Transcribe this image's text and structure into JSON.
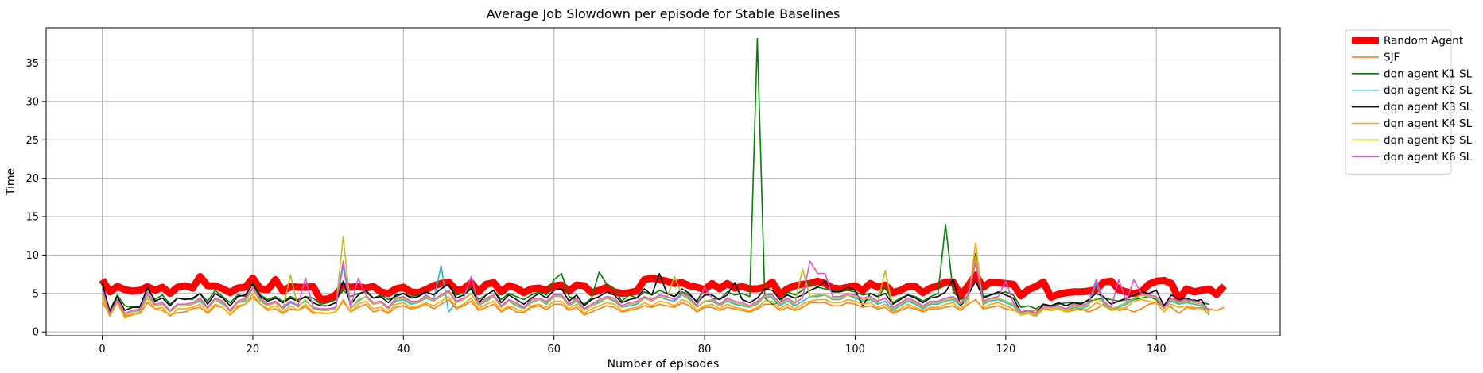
{
  "chart_data": {
    "type": "line",
    "title": "Average Job Slowdown per episode for Stable Baselines",
    "xlabel": "Number of episodes",
    "ylabel": "Time",
    "xlim": [
      -7.45,
      156.45
    ],
    "ylim": [
      -0.5,
      39.6
    ],
    "xticks": [
      0,
      20,
      40,
      60,
      80,
      100,
      120,
      140
    ],
    "yticks": [
      0,
      5,
      10,
      15,
      20,
      25,
      30,
      35
    ],
    "grid": true,
    "legend": "outside-top-right",
    "series": [
      {
        "name": "Random Agent",
        "color": "#ff0000",
        "width": 9,
        "values": [
          6.8,
          5.2,
          5.9,
          5.5,
          5.3,
          5.4,
          5.9,
          5.4,
          5.8,
          5.0,
          5.8,
          6.0,
          5.7,
          7.2,
          6.0,
          6.0,
          5.6,
          5.1,
          5.7,
          5.8,
          7.0,
          5.6,
          5.5,
          6.8,
          5.3,
          5.9,
          5.8,
          5.8,
          5.9,
          4.2,
          4.3,
          4.8,
          6.0,
          5.8,
          5.9,
          5.7,
          5.9,
          5.2,
          5.0,
          5.6,
          5.8,
          5.2,
          5.1,
          5.5,
          6.0,
          6.3,
          6.5,
          5.4,
          5.6,
          6.4,
          5.2,
          6.2,
          6.4,
          5.2,
          6.0,
          5.7,
          5.1,
          5.6,
          5.7,
          5.4,
          6.0,
          6.1,
          5.3,
          6.1,
          6.0,
          5.1,
          5.4,
          5.8,
          5.2,
          5.0,
          5.1,
          5.3,
          6.8,
          7.0,
          6.8,
          6.6,
          6.3,
          6.4,
          6.0,
          5.8,
          5.5,
          6.3,
          5.6,
          6.3,
          5.7,
          5.9,
          5.6,
          5.6,
          5.8,
          6.5,
          4.9,
          5.6,
          6.0,
          6.2,
          6.3,
          6.6,
          6.3,
          5.7,
          5.6,
          5.8,
          6.0,
          5.4,
          6.3,
          5.8,
          6.1,
          5.1,
          5.4,
          5.9,
          5.9,
          5.1,
          5.7,
          6.0,
          6.5,
          6.5,
          4.7,
          6.0,
          7.4,
          5.8,
          6.5,
          6.4,
          6.3,
          6.2,
          4.7,
          5.5,
          5.9,
          6.5,
          4.5,
          4.9,
          5.1,
          5.2,
          5.2,
          5.3,
          5.5,
          6.5,
          6.6,
          5.5,
          5.2,
          5.0,
          5.2,
          6.2,
          6.6,
          6.7,
          6.3,
          4.2,
          5.6,
          5.2,
          5.4,
          5.6,
          4.9,
          6.0
        ]
      },
      {
        "name": "SJF",
        "color": "#ff7f0e",
        "width": 1.6,
        "values": [
          3.8,
          2.4,
          3.9,
          2.0,
          2.3,
          2.4,
          3.8,
          3.0,
          2.8,
          2.2,
          2.5,
          2.6,
          3.0,
          3.2,
          2.4,
          3.4,
          3.2,
          2.2,
          3.2,
          3.6,
          4.5,
          3.6,
          2.8,
          3.0,
          2.4,
          3.0,
          2.8,
          3.3,
          2.4,
          2.5,
          2.4,
          2.6,
          4.0,
          2.6,
          3.2,
          3.6,
          2.6,
          2.9,
          2.4,
          3.2,
          3.4,
          3.0,
          3.2,
          3.6,
          3.0,
          3.6,
          4.2,
          3.0,
          3.4,
          4.0,
          2.8,
          3.2,
          3.6,
          2.6,
          3.2,
          2.6,
          2.5,
          3.2,
          3.4,
          2.9,
          3.6,
          3.6,
          2.8,
          3.2,
          2.2,
          2.6,
          3.0,
          3.4,
          3.2,
          2.6,
          2.8,
          3.0,
          3.4,
          3.2,
          3.6,
          3.4,
          3.2,
          3.8,
          3.4,
          2.6,
          3.2,
          3.2,
          2.8,
          3.2,
          3.0,
          2.8,
          2.6,
          3.0,
          3.6,
          3.6,
          2.8,
          3.2,
          2.8,
          3.2,
          3.8,
          3.8,
          3.8,
          3.4,
          3.4,
          3.8,
          3.6,
          3.2,
          3.4,
          3.0,
          3.2,
          2.4,
          2.8,
          3.2,
          3.0,
          2.6,
          3.0,
          3.0,
          3.2,
          3.4,
          2.8,
          3.6,
          4.2,
          3.0,
          3.2,
          3.4,
          3.0,
          2.8,
          2.6,
          2.6,
          2.8,
          3.2,
          2.8,
          3.0,
          2.6,
          2.8,
          3.0,
          2.6,
          3.0,
          3.6,
          3.2,
          2.8,
          3.0,
          2.6,
          3.0,
          3.6,
          3.8,
          3.6,
          3.2,
          2.4,
          3.2,
          3.0,
          3.2,
          3.0,
          2.8,
          3.2
        ]
      },
      {
        "name": "dqn agent K1 SL",
        "color": "#008000",
        "width": 1.6,
        "values": [
          6.2,
          2.8,
          4.8,
          3.4,
          3.2,
          3.3,
          5.6,
          4.2,
          4.8,
          3.6,
          4.4,
          4.3,
          4.2,
          5.0,
          4.0,
          5.4,
          4.6,
          3.8,
          4.8,
          4.6,
          6.4,
          4.8,
          4.2,
          4.6,
          4.0,
          4.6,
          4.2,
          4.6,
          4.4,
          3.6,
          3.8,
          4.2,
          5.4,
          4.6,
          5.0,
          5.2,
          4.4,
          4.8,
          4.2,
          4.6,
          5.0,
          4.6,
          4.8,
          5.2,
          4.8,
          5.6,
          6.2,
          4.8,
          5.0,
          5.8,
          4.2,
          4.8,
          5.4,
          4.2,
          5.0,
          4.6,
          4.2,
          4.8,
          5.2,
          4.8,
          6.8,
          7.6,
          4.6,
          4.2,
          3.6,
          4.4,
          7.8,
          6.2,
          5.6,
          4.0,
          4.8,
          4.4,
          5.2,
          4.8,
          5.4,
          5.0,
          4.6,
          5.2,
          4.8,
          4.0,
          5.8,
          4.4,
          4.2,
          5.2,
          4.8,
          5.0,
          4.6,
          38.2,
          4.4,
          3.6,
          3.8,
          5.2,
          4.8,
          5.4,
          6.4,
          5.8,
          5.6,
          5.4,
          5.4,
          5.4,
          5.2,
          4.8,
          5.0,
          4.6,
          5.8,
          3.8,
          4.4,
          4.8,
          4.6,
          4.0,
          4.6,
          5.0,
          14.0,
          5.2,
          4.2,
          4.6,
          10.2,
          4.6,
          4.8,
          5.0,
          5.2,
          4.8,
          3.2,
          3.4,
          3.0,
          3.6,
          3.4,
          3.6,
          3.8,
          3.8,
          3.8,
          4.0,
          4.2,
          4.4,
          4.2,
          4.0,
          4.2,
          4.2,
          4.4,
          4.6,
          4.2,
          3.0,
          4.2,
          3.8,
          4.0,
          4.2,
          3.8,
          3.6
        ]
      },
      {
        "name": "dqn agent K2 SL",
        "color": "#17becf",
        "width": 1.6,
        "values": [
          5.8,
          2.2,
          4.0,
          2.2,
          2.6,
          2.8,
          4.8,
          3.4,
          3.6,
          2.6,
          3.4,
          3.4,
          3.6,
          4.0,
          3.0,
          4.2,
          3.6,
          2.8,
          3.8,
          4.0,
          5.6,
          4.0,
          3.4,
          3.8,
          3.0,
          3.8,
          3.4,
          4.0,
          3.2,
          2.8,
          2.8,
          3.0,
          8.6,
          3.0,
          4.0,
          4.6,
          3.6,
          3.8,
          3.0,
          4.0,
          4.2,
          3.6,
          3.8,
          4.4,
          4.0,
          8.6,
          2.6,
          3.8,
          4.2,
          5.0,
          3.4,
          4.0,
          4.6,
          3.2,
          4.0,
          3.4,
          3.0,
          3.8,
          4.2,
          3.6,
          4.6,
          4.6,
          3.4,
          4.0,
          2.8,
          3.4,
          3.8,
          4.4,
          4.0,
          3.2,
          3.4,
          3.6,
          4.4,
          4.0,
          4.6,
          4.2,
          4.0,
          4.8,
          4.2,
          3.2,
          4.0,
          4.0,
          3.4,
          4.0,
          3.6,
          3.4,
          3.2,
          3.6,
          4.6,
          4.4,
          3.4,
          4.0,
          3.4,
          4.0,
          4.6,
          4.6,
          4.8,
          4.2,
          4.2,
          4.8,
          4.4,
          4.0,
          4.2,
          3.6,
          4.0,
          2.8,
          3.4,
          4.0,
          3.6,
          3.0,
          3.6,
          3.6,
          4.0,
          4.2,
          3.4,
          4.4,
          9.6,
          3.6,
          4.0,
          4.2,
          3.8,
          3.4,
          2.2,
          2.4,
          2.0,
          3.0,
          2.8,
          3.0,
          2.6,
          3.2,
          3.0,
          3.4,
          6.4,
          3.6,
          2.8,
          3.2,
          3.6,
          4.2,
          4.8,
          4.6,
          4.4,
          3.0,
          4.0,
          3.6,
          3.8,
          3.6,
          3.4,
          2.2
        ]
      },
      {
        "name": "dqn agent K3 SL",
        "color": "#000000",
        "width": 1.6,
        "values": [
          6.4,
          2.6,
          4.6,
          2.8,
          3.2,
          3.2,
          5.8,
          4.0,
          4.4,
          3.4,
          4.4,
          4.2,
          4.4,
          5.0,
          3.6,
          5.0,
          4.4,
          3.4,
          4.6,
          4.8,
          6.2,
          4.6,
          4.0,
          4.4,
          3.8,
          4.4,
          4.0,
          4.6,
          3.8,
          3.4,
          3.4,
          3.8,
          6.6,
          3.6,
          4.8,
          5.4,
          4.4,
          4.6,
          3.8,
          4.8,
          5.0,
          4.4,
          4.6,
          5.2,
          4.8,
          5.6,
          6.2,
          4.4,
          4.8,
          5.6,
          3.8,
          4.8,
          5.4,
          3.8,
          4.8,
          4.2,
          3.6,
          4.4,
          5.0,
          4.4,
          5.4,
          5.6,
          4.0,
          4.8,
          3.4,
          4.2,
          4.6,
          5.2,
          4.8,
          3.8,
          4.2,
          4.4,
          5.6,
          4.8,
          7.6,
          5.0,
          4.6,
          5.6,
          5.0,
          3.8,
          4.8,
          4.8,
          4.2,
          4.8,
          6.4,
          4.2,
          3.8,
          4.4,
          5.6,
          5.4,
          4.2,
          4.8,
          4.4,
          4.8,
          5.4,
          5.8,
          6.6,
          5.2,
          5.2,
          5.8,
          5.4,
          3.4,
          5.0,
          4.6,
          5.0,
          3.6,
          4.2,
          4.8,
          4.4,
          3.8,
          4.4,
          4.6,
          5.2,
          6.8,
          3.4,
          4.8,
          6.6,
          4.4,
          4.8,
          5.2,
          4.8,
          4.4,
          2.6,
          2.8,
          2.4,
          3.6,
          3.4,
          3.8,
          3.4,
          3.8,
          3.6,
          4.2,
          5.0,
          4.6,
          3.6,
          4.0,
          4.4,
          4.8,
          5.2,
          5.0,
          5.4,
          3.4,
          4.8,
          4.2,
          4.4,
          4.0,
          4.2,
          2.6
        ]
      },
      {
        "name": "dqn agent K4 SL",
        "color": "#ffa500",
        "width": 1.6,
        "values": [
          4.4,
          2.0,
          3.8,
          1.8,
          2.2,
          2.6,
          4.4,
          3.0,
          3.2,
          2.0,
          3.0,
          3.0,
          3.2,
          3.6,
          2.6,
          3.6,
          3.2,
          2.2,
          3.4,
          3.6,
          5.0,
          3.6,
          3.0,
          3.4,
          2.6,
          3.4,
          2.8,
          3.6,
          2.6,
          2.4,
          2.4,
          2.6,
          4.2,
          2.6,
          3.6,
          4.0,
          3.0,
          3.2,
          2.6,
          3.6,
          3.8,
          3.2,
          3.4,
          3.8,
          3.4,
          4.0,
          4.6,
          3.2,
          3.6,
          4.4,
          3.0,
          3.6,
          4.0,
          2.8,
          3.4,
          3.0,
          2.6,
          3.4,
          3.6,
          3.2,
          4.0,
          4.0,
          3.0,
          3.6,
          2.4,
          3.0,
          3.4,
          3.8,
          3.6,
          2.8,
          3.0,
          3.2,
          3.8,
          3.4,
          4.0,
          3.8,
          3.4,
          4.2,
          3.8,
          2.8,
          3.4,
          3.6,
          3.0,
          3.6,
          3.2,
          3.0,
          2.8,
          3.2,
          4.0,
          4.0,
          3.0,
          3.6,
          3.0,
          3.6,
          4.0,
          4.2,
          4.2,
          3.8,
          3.8,
          4.2,
          4.0,
          3.6,
          3.8,
          3.2,
          3.6,
          2.6,
          3.0,
          3.6,
          3.2,
          2.8,
          3.2,
          3.2,
          3.6,
          3.8,
          3.0,
          4.0,
          11.6,
          3.2,
          3.6,
          3.8,
          3.4,
          3.0,
          2.2,
          2.4,
          2.0,
          3.0,
          2.8,
          3.0,
          2.6,
          3.0,
          2.8,
          3.0,
          3.8,
          3.4,
          2.8,
          3.0,
          3.2,
          4.0,
          4.2,
          4.0,
          3.8,
          2.6,
          3.6,
          3.2,
          3.4,
          3.2,
          3.0,
          2.4
        ]
      },
      {
        "name": "dqn agent K5 SL",
        "color": "#bcbd22",
        "width": 1.6,
        "values": [
          5.0,
          2.2,
          4.2,
          2.2,
          2.6,
          3.0,
          5.0,
          3.4,
          3.6,
          2.6,
          3.4,
          3.4,
          3.6,
          4.2,
          3.0,
          4.2,
          3.8,
          2.6,
          3.8,
          4.2,
          5.6,
          4.2,
          3.4,
          3.8,
          3.0,
          7.4,
          3.2,
          4.2,
          3.0,
          2.8,
          2.8,
          3.0,
          12.4,
          3.0,
          4.2,
          4.6,
          3.6,
          3.8,
          3.0,
          4.2,
          4.4,
          3.8,
          3.8,
          4.6,
          4.0,
          4.6,
          5.2,
          3.8,
          4.2,
          5.0,
          3.4,
          4.2,
          4.6,
          3.2,
          4.0,
          3.6,
          3.0,
          4.0,
          4.2,
          3.8,
          4.6,
          4.6,
          3.4,
          4.2,
          2.8,
          3.4,
          4.0,
          4.4,
          4.2,
          3.2,
          3.6,
          3.8,
          4.4,
          4.0,
          4.6,
          4.4,
          7.2,
          4.8,
          4.4,
          3.2,
          4.0,
          4.2,
          3.4,
          4.2,
          3.8,
          3.6,
          3.2,
          3.8,
          4.6,
          4.6,
          3.6,
          4.2,
          3.6,
          8.2,
          4.6,
          4.8,
          4.8,
          4.4,
          4.4,
          4.8,
          4.6,
          4.2,
          4.4,
          3.8,
          8.0,
          3.0,
          3.6,
          4.2,
          3.8,
          3.2,
          3.8,
          3.8,
          4.2,
          4.4,
          3.6,
          4.6,
          9.8,
          3.8,
          4.2,
          4.4,
          4.0,
          3.6,
          2.4,
          2.6,
          2.2,
          3.2,
          3.0,
          3.2,
          2.8,
          3.4,
          3.2,
          3.6,
          4.4,
          3.8,
          3.0,
          3.4,
          3.8,
          4.4,
          4.8,
          4.6,
          4.4,
          3.0,
          4.2,
          3.8,
          4.0,
          3.8,
          3.6,
          2.6
        ]
      },
      {
        "name": "dqn agent K6 SL",
        "color": "#e64fd8",
        "width": 1.6,
        "values": [
          5.6,
          2.4,
          4.2,
          2.4,
          2.8,
          3.0,
          5.2,
          3.6,
          3.8,
          2.8,
          3.6,
          3.6,
          3.8,
          4.4,
          3.2,
          4.4,
          4.0,
          2.8,
          4.0,
          4.4,
          5.8,
          4.4,
          3.6,
          4.0,
          3.2,
          4.0,
          3.4,
          7.0,
          3.2,
          3.0,
          3.0,
          3.2,
          9.2,
          3.2,
          7.0,
          4.8,
          3.8,
          4.0,
          3.2,
          4.4,
          4.6,
          4.0,
          4.0,
          4.8,
          4.2,
          4.8,
          5.4,
          4.0,
          4.4,
          7.2,
          3.6,
          4.4,
          4.8,
          3.4,
          4.2,
          3.8,
          3.2,
          4.2,
          4.4,
          4.0,
          4.8,
          4.8,
          3.6,
          4.4,
          3.0,
          3.6,
          4.2,
          4.6,
          4.4,
          3.4,
          3.8,
          4.0,
          4.6,
          4.2,
          4.8,
          4.6,
          4.2,
          5.0,
          4.6,
          3.4,
          5.8,
          4.4,
          3.6,
          4.4,
          4.0,
          3.8,
          3.4,
          4.0,
          4.8,
          4.8,
          3.8,
          4.4,
          3.8,
          4.4,
          9.2,
          7.6,
          7.6,
          4.6,
          4.6,
          5.0,
          4.8,
          4.4,
          4.6,
          4.0,
          4.4,
          3.2,
          3.8,
          4.4,
          4.0,
          3.4,
          4.0,
          4.0,
          4.4,
          4.6,
          3.8,
          4.8,
          9.0,
          4.0,
          4.4,
          4.6,
          6.6,
          3.8,
          2.6,
          2.8,
          2.4,
          3.4,
          3.2,
          3.4,
          3.0,
          3.6,
          3.4,
          3.8,
          6.8,
          4.0,
          3.2,
          6.8,
          4.0,
          6.8,
          5.0,
          4.8,
          4.6,
          3.2,
          4.4,
          4.0,
          4.2,
          4.0,
          3.8,
          2.8
        ]
      }
    ]
  }
}
